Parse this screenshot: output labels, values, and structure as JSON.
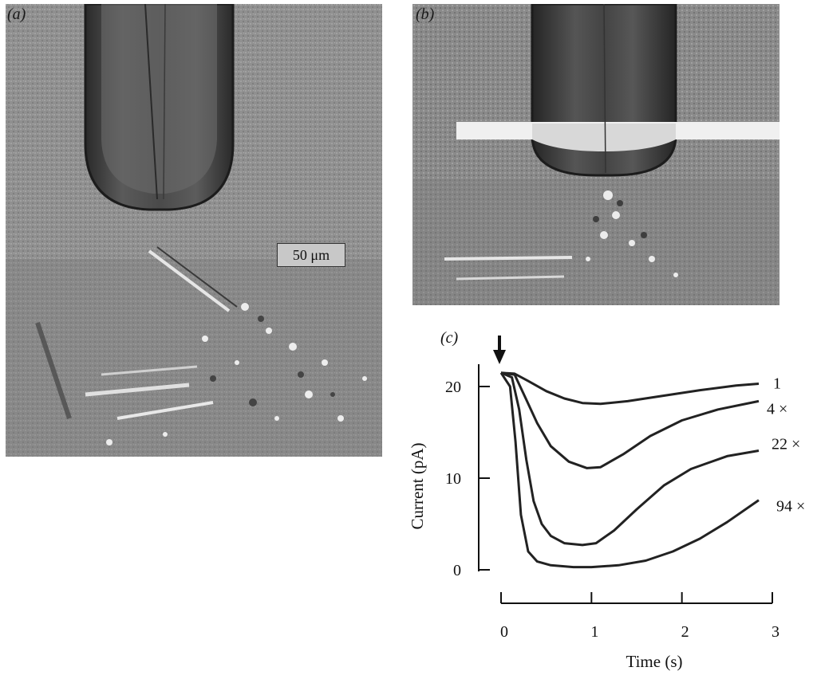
{
  "panels": {
    "a": {
      "label": "(a)",
      "scale_bar": "50 μm"
    },
    "b": {
      "label": "(b)"
    },
    "c": {
      "label": "(c)"
    }
  },
  "chart_data": {
    "type": "line",
    "xlabel": "Time (s)",
    "ylabel": "Current (pA)",
    "xlim": [
      0,
      3
    ],
    "ylim": [
      0,
      22
    ],
    "x_ticks": [
      0,
      1,
      2,
      3
    ],
    "y_ticks": [
      0,
      10,
      20
    ],
    "stimulus_marker_x": 0,
    "series": [
      {
        "name": "1",
        "x": [
          0,
          0.15,
          0.3,
          0.5,
          0.7,
          0.9,
          1.1,
          1.4,
          1.8,
          2.2,
          2.6,
          2.85
        ],
        "y": [
          21.5,
          21.4,
          20.6,
          19.5,
          18.7,
          18.2,
          18.1,
          18.4,
          19.0,
          19.6,
          20.1,
          20.3
        ]
      },
      {
        "name": "4 ×",
        "x": [
          0,
          0.15,
          0.25,
          0.4,
          0.55,
          0.75,
          0.95,
          1.1,
          1.35,
          1.65,
          2.0,
          2.4,
          2.85
        ],
        "y": [
          21.5,
          21.3,
          19.2,
          16.0,
          13.5,
          11.8,
          11.1,
          11.2,
          12.6,
          14.6,
          16.3,
          17.5,
          18.4
        ]
      },
      {
        "name": "22 ×",
        "x": [
          0,
          0.12,
          0.2,
          0.28,
          0.36,
          0.45,
          0.55,
          0.7,
          0.9,
          1.05,
          1.25,
          1.5,
          1.8,
          2.1,
          2.5,
          2.85
        ],
        "y": [
          21.5,
          21.0,
          17.5,
          12.0,
          7.5,
          5.0,
          3.7,
          2.9,
          2.7,
          2.9,
          4.3,
          6.6,
          9.2,
          11.0,
          12.4,
          13.0
        ]
      },
      {
        "name": "94 ×",
        "x": [
          0,
          0.1,
          0.16,
          0.22,
          0.3,
          0.4,
          0.55,
          0.8,
          1.0,
          1.3,
          1.6,
          1.9,
          2.2,
          2.5,
          2.85
        ],
        "y": [
          21.5,
          20.0,
          14.0,
          6.0,
          2.0,
          0.9,
          0.5,
          0.3,
          0.3,
          0.5,
          1.0,
          2.0,
          3.4,
          5.2,
          7.6
        ]
      }
    ]
  }
}
